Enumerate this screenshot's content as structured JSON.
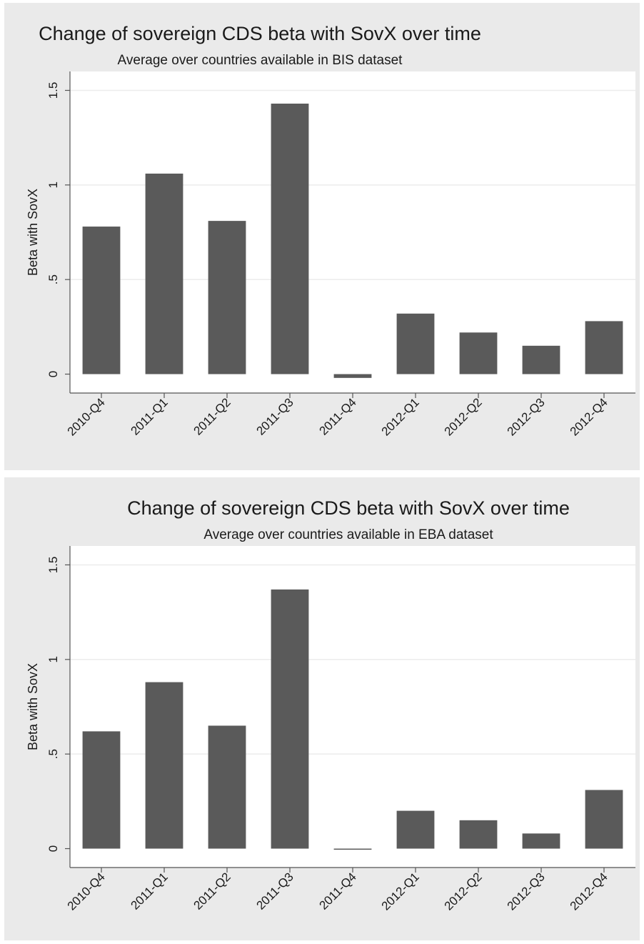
{
  "chart_data": [
    {
      "type": "bar",
      "title": "Change of sovereign CDS beta with SovX over time",
      "subtitle": "Average over countries available in BIS dataset",
      "xlabel": "",
      "ylabel": "Beta with SovX",
      "categories": [
        "2010-Q4",
        "2011-Q1",
        "2011-Q2",
        "2011-Q3",
        "2011-Q4",
        "2012-Q1",
        "2012-Q2",
        "2012-Q3",
        "2012-Q4"
      ],
      "values": [
        0.78,
        1.06,
        0.81,
        1.43,
        -0.02,
        0.32,
        0.22,
        0.15,
        0.28
      ],
      "yticks": [
        0,
        0.5,
        1,
        1.5
      ],
      "ytick_labels": [
        "0",
        ".5",
        "1",
        "1.5"
      ],
      "ylim": [
        -0.1,
        1.6
      ],
      "grid": true,
      "bar_color": "#5a5a5a",
      "background": "#eaeaea"
    },
    {
      "type": "bar",
      "title": "Change of sovereign CDS beta with SovX over time",
      "subtitle": "Average over countries available in EBA dataset",
      "xlabel": "",
      "ylabel": "Beta with SovX",
      "categories": [
        "2010-Q4",
        "2011-Q1",
        "2011-Q2",
        "2011-Q3",
        "2011-Q4",
        "2012-Q1",
        "2012-Q2",
        "2012-Q3",
        "2012-Q4"
      ],
      "values": [
        0.62,
        0.88,
        0.65,
        1.37,
        0.0,
        0.2,
        0.15,
        0.08,
        0.31
      ],
      "yticks": [
        0,
        0.5,
        1,
        1.5
      ],
      "ytick_labels": [
        "0",
        ".5",
        "1",
        "1.5"
      ],
      "ylim": [
        -0.1,
        1.6
      ],
      "grid": true,
      "bar_color": "#5a5a5a",
      "background": "#eaeaea"
    }
  ]
}
